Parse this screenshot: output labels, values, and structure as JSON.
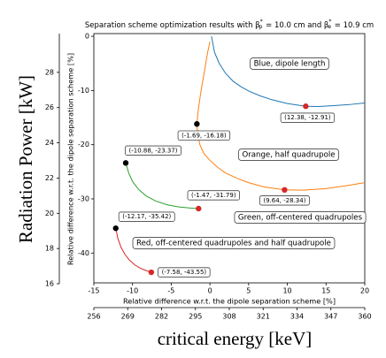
{
  "chart_data": {
    "type": "line",
    "title": [
      "Separation scheme optimization results with β",
      "*",
      "p",
      " = 10.0 cm and β",
      "*",
      "e",
      " = 10.9 cm"
    ],
    "xlabel": "Relative difference w.r.t. the dipole separation scheme [%]",
    "ylabel": "Relative difference w.r.t. the dipole separation scheme [%]",
    "xlim": [
      -15,
      20
    ],
    "xticks": [
      -15,
      -10,
      -5,
      0,
      5,
      10,
      15,
      20
    ],
    "ylim": [
      -45.5,
      0.5
    ],
    "yticks": [
      0,
      -10,
      -20,
      -30,
      -40
    ],
    "series": [
      {
        "name": "Blue, dipole length",
        "color": "#1f77b4",
        "x": [
          0.2,
          0.6,
          1.2,
          2,
          3,
          4,
          5,
          6.5,
          8,
          10,
          12.38,
          14,
          16,
          18,
          20
        ],
        "values": [
          0,
          -3,
          -5,
          -6.8,
          -8.3,
          -9.3,
          -10.1,
          -11,
          -11.7,
          -12.4,
          -12.91,
          -12.95,
          -12.8,
          -12.6,
          -12.3
        ]
      },
      {
        "name": "Orange, half quadrupole",
        "color": "#ff7f0e",
        "x": [
          0,
          -0.3,
          -0.6,
          -0.9,
          -1.2,
          -1.5,
          -1.69,
          -1.6,
          -1.3,
          -0.8,
          0,
          1,
          2,
          3.5,
          5,
          7,
          9.64,
          12,
          15,
          17.5,
          20
        ],
        "values": [
          -1,
          -3,
          -5.5,
          -8,
          -10.5,
          -13.5,
          -16.18,
          -18,
          -20,
          -21.6,
          -22.9,
          -24.2,
          -25.2,
          -26.2,
          -27,
          -27.8,
          -28.34,
          -28.4,
          -28.1,
          -27.6,
          -27
        ]
      },
      {
        "name": "Green, off-centered quadrupoles",
        "color": "#2ca02c",
        "x": [
          -10.88,
          -10.5,
          -10,
          -9.2,
          -8.2,
          -7,
          -5.5,
          -4,
          -2.5,
          -1.47
        ],
        "values": [
          -23.37,
          -25.2,
          -26.8,
          -28.3,
          -29.5,
          -30.4,
          -31.1,
          -31.5,
          -31.7,
          -31.79
        ]
      },
      {
        "name": "Red, off-centered quadrupoles and half quadrupole",
        "color": "#d62728",
        "x": [
          -12.17,
          -11.9,
          -11.5,
          -11,
          -10.4,
          -9.7,
          -9,
          -8.3,
          -7.58
        ],
        "values": [
          -35.42,
          -37.3,
          -38.9,
          -40.2,
          -41.3,
          -42.2,
          -42.8,
          -43.2,
          -43.55
        ]
      }
    ],
    "points": [
      {
        "x": -1.69,
        "y": -16.18,
        "label": "(-1.69, -16.18)",
        "color": "#000000"
      },
      {
        "x": 12.38,
        "y": -12.91,
        "label": "(12.38, -12.91)",
        "color": "#d62728"
      },
      {
        "x": -10.88,
        "y": -23.37,
        "label": "(-10.88, -23.37)",
        "color": "#000000"
      },
      {
        "x": -1.47,
        "y": -31.79,
        "label": "(-1.47, -31.79)",
        "color": "#d62728"
      },
      {
        "x": 9.64,
        "y": -28.34,
        "label": "(9.64, -28.34)",
        "color": "#d62728"
      },
      {
        "x": -12.17,
        "y": -35.42,
        "label": "(-12.17, -35.42)",
        "color": "#000000"
      },
      {
        "x": -7.58,
        "y": -43.55,
        "label": "(-7.58, -43.55)",
        "color": "#d62728"
      }
    ],
    "outer_ylabel": "Radiation Power [kW]",
    "outer_ylim": [
      16,
      30.2
    ],
    "outer_yticks": [
      16,
      18,
      20,
      22,
      24,
      26,
      28
    ],
    "outer_xlabel": "critical energy [keV]",
    "outer_xlim": [
      256,
      360
    ],
    "outer_xticks": [
      256,
      269,
      282,
      295,
      308,
      321,
      334,
      347,
      360
    ]
  }
}
